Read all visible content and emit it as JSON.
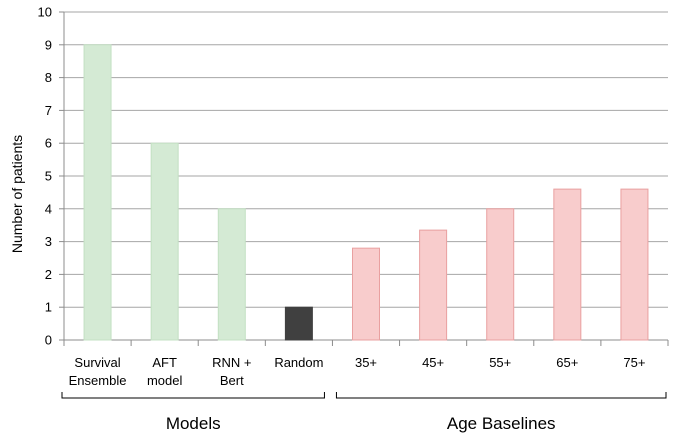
{
  "chart_data": {
    "type": "bar",
    "title": "",
    "xlabel": "",
    "ylabel": "Number of patients",
    "ylim": [
      0,
      10
    ],
    "yticks": [
      0,
      1,
      2,
      3,
      4,
      5,
      6,
      7,
      8,
      9,
      10
    ],
    "grid": "horizontal",
    "categories": [
      [
        "Survival",
        "Ensemble"
      ],
      [
        "AFT",
        "model"
      ],
      [
        "RNN +",
        "Bert"
      ],
      [
        "Random"
      ],
      [
        "35+"
      ],
      [
        "45+"
      ],
      [
        "55+"
      ],
      [
        "65+"
      ],
      [
        "75+"
      ]
    ],
    "values": [
      9,
      6,
      4,
      1,
      2.8,
      3.35,
      4,
      4.6,
      4.6
    ],
    "bar_fill": [
      "#d4ead4",
      "#d4ead4",
      "#d4ead4",
      "#404040",
      "#f8cccc",
      "#f8cccc",
      "#f8cccc",
      "#f8cccc",
      "#f8cccc"
    ],
    "bar_stroke": [
      "#c3e0c3",
      "#c3e0c3",
      "#c3e0c3",
      "#404040",
      "#e9a0a0",
      "#e9a0a0",
      "#e9a0a0",
      "#e9a0a0",
      "#e9a0a0"
    ],
    "groups": [
      {
        "label": "Models",
        "from": 0,
        "to": 3
      },
      {
        "label": "Age Baselines",
        "from": 4,
        "to": 8
      }
    ]
  }
}
